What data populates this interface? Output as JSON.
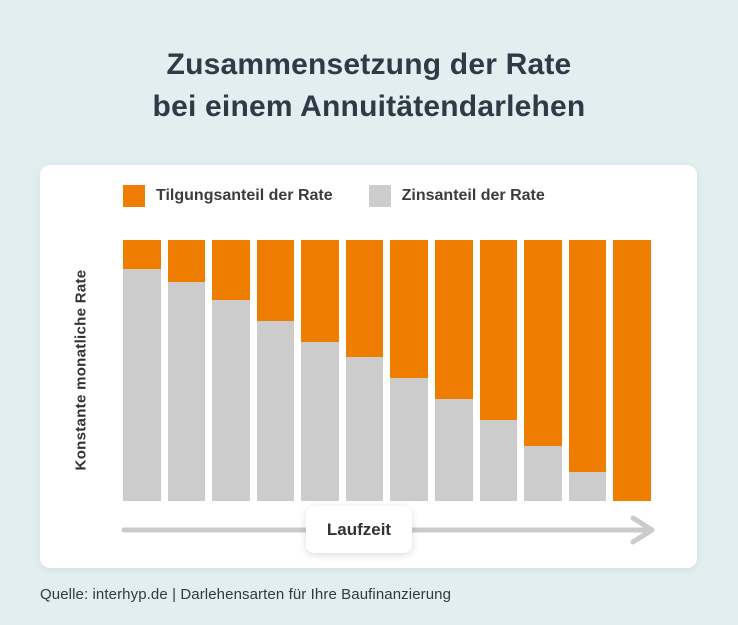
{
  "title": {
    "line1": "Zusammensetzung der Rate",
    "line2": "bei einem Annuitätendarlehen"
  },
  "legend": [
    {
      "label": "Tilgungsanteil der Rate",
      "color": "#ee7d00"
    },
    {
      "label": "Zinsanteil der Rate",
      "color": "#cccccc"
    }
  ],
  "chart_data": {
    "type": "bar",
    "stacked": true,
    "bar_count": 12,
    "series": [
      {
        "name": "Zinsanteil der Rate",
        "color": "#cccccc",
        "values": [
          89,
          84,
          77,
          69,
          61,
          55,
          47,
          39,
          31,
          21,
          11,
          0
        ]
      },
      {
        "name": "Tilgungsanteil der Rate",
        "color": "#ee7d00",
        "values": [
          11,
          16,
          23,
          31,
          39,
          45,
          53,
          61,
          69,
          79,
          89,
          100
        ]
      }
    ],
    "title": "Zusammensetzung der Rate bei einem Annuitätendarlehen",
    "xlabel": "Laufzeit",
    "ylabel": "Konstante monatliche Rate",
    "ylim": [
      0,
      100
    ],
    "unit": "percent of constant monthly rate",
    "grid": false,
    "legend_position": "top",
    "x_axis_style": "arrow-right"
  },
  "axis": {
    "x_label": "Laufzeit",
    "y_label": "Konstante monatliche Rate",
    "arrow_color": "#cbcbcb"
  },
  "source": "Quelle: interhyp.de | Darlehensarten für Ihre Baufinanzierung",
  "colors": {
    "background": "#e3eef0",
    "card": "#ffffff",
    "title_text": "#2e3a46",
    "tilgung_orange": "#ee7d00",
    "zins_gray": "#cccccc"
  }
}
